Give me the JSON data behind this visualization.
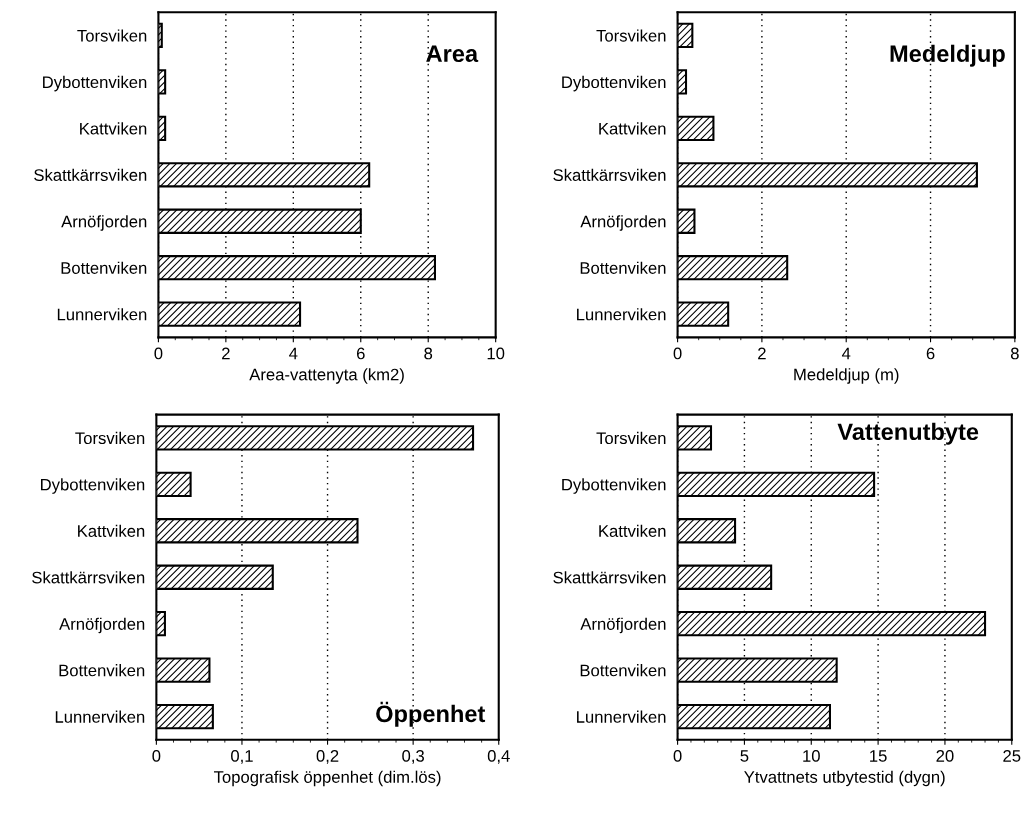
{
  "chart_data": [
    {
      "type": "bar",
      "orientation": "horizontal",
      "title": "Area",
      "xlabel": "Area-vattenyta (km2)",
      "categories": [
        "Torsviken",
        "Dybottenviken",
        "Kattviken",
        "Skattkärrsviken",
        "Arnöfjorden",
        "Bottenviken",
        "Lunnerviken"
      ],
      "values": [
        0.1,
        0.2,
        0.2,
        6.25,
        6.0,
        8.2,
        4.2
      ],
      "color": "#000000",
      "xlim": [
        0,
        10
      ],
      "xticks": [
        0,
        2,
        4,
        6,
        8,
        10
      ],
      "grid": "x"
    },
    {
      "type": "bar",
      "orientation": "horizontal",
      "title": "Medeldjup",
      "xlabel": "Medeldjup (m)",
      "categories": [
        "Torsviken",
        "Dybottenviken",
        "Kattviken",
        "Skattkärrsviken",
        "Arnöfjorden",
        "Bottenviken",
        "Lunnerviken"
      ],
      "values": [
        0.35,
        0.2,
        0.85,
        7.1,
        0.4,
        2.6,
        1.2
      ],
      "color": "#000000",
      "xlim": [
        0,
        8
      ],
      "xticks": [
        0,
        2,
        4,
        6,
        8
      ],
      "grid": "x"
    },
    {
      "type": "bar",
      "orientation": "horizontal",
      "title": "Öppenhet",
      "xlabel": "Topografisk öppenhet (dim.lös)",
      "categories": [
        "Torsviken",
        "Dybottenviken",
        "Kattviken",
        "Skattkärrsviken",
        "Arnöfjorden",
        "Bottenviken",
        "Lunnerviken"
      ],
      "values": [
        0.37,
        0.04,
        0.235,
        0.136,
        0.01,
        0.062,
        0.066
      ],
      "color": "#000000",
      "xlim": [
        0,
        0.4
      ],
      "xticks": [
        0,
        {
          "value": 0.1,
          "label": "0,1"
        },
        {
          "value": 0.2,
          "label": "0,2"
        },
        {
          "value": 0.3,
          "label": "0,3"
        },
        {
          "value": 0.4,
          "label": "0,4"
        }
      ],
      "grid": "x"
    },
    {
      "type": "bar",
      "orientation": "horizontal",
      "title": "Vattenutbyte",
      "xlabel": "Ytvattnets utbytestid (dygn)",
      "categories": [
        "Torsviken",
        "Dybottenviken",
        "Kattviken",
        "Skattkärrsviken",
        "Arnöfjorden",
        "Bottenviken",
        "Lunnerviken"
      ],
      "values": [
        2.5,
        14.7,
        4.3,
        7.0,
        23,
        11.9,
        11.4
      ],
      "color": "#000000",
      "xlim": [
        0,
        25
      ],
      "xticks": [
        0,
        5,
        10,
        15,
        20,
        25
      ],
      "grid": "x"
    }
  ]
}
